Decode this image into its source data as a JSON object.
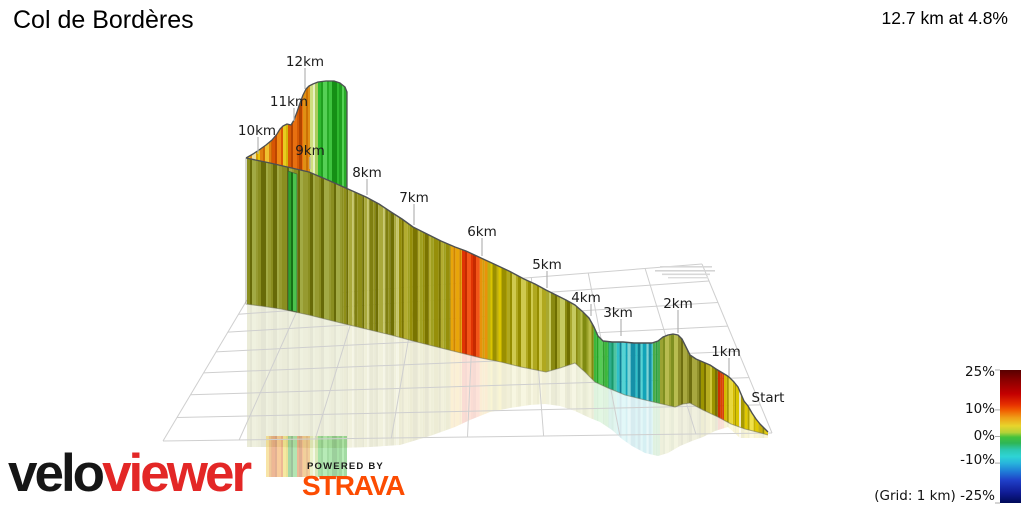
{
  "header": {
    "title": "Col de Bordères",
    "summary": "12.7 km at 4.8%"
  },
  "legend": {
    "ticks": [
      "25%",
      "10%",
      "0%",
      "-10%",
      "-25%"
    ],
    "grid_note": "(Grid: 1 km)",
    "bottom_line": "(Grid: 1 km) -25%"
  },
  "footer": {
    "brand_black": "velo",
    "brand_red": "viewer",
    "powered_by": "POWERED BY",
    "strava": "STRAVA"
  },
  "chart_data": {
    "type": "3d_elevation_profile",
    "title": "Col de Bordères",
    "distance_km": 12.7,
    "avg_grade_pct": 4.8,
    "grid_interval_km": 1,
    "markers": [
      {
        "km": 0,
        "label": "Start"
      },
      {
        "km": 1,
        "label": "1km"
      },
      {
        "km": 2,
        "label": "2km"
      },
      {
        "km": 3,
        "label": "3km"
      },
      {
        "km": 4,
        "label": "4km"
      },
      {
        "km": 5,
        "label": "5km"
      },
      {
        "km": 6,
        "label": "6km"
      },
      {
        "km": 7,
        "label": "7km"
      },
      {
        "km": 8,
        "label": "8km"
      },
      {
        "km": 9,
        "label": "9km"
      },
      {
        "km": 10,
        "label": "10km"
      },
      {
        "km": 11,
        "label": "11km"
      },
      {
        "km": 12,
        "label": "12km"
      }
    ],
    "legend": {
      "min_pct": -25,
      "max_pct": 25,
      "tick_values_pct": [
        25,
        10,
        0,
        -10,
        -25
      ],
      "gradient": [
        [
          0,
          "#580000"
        ],
        [
          0.08,
          "#8c0000"
        ],
        [
          0.18,
          "#c40000"
        ],
        [
          0.26,
          "#e63000"
        ],
        [
          0.3,
          "#f05a00"
        ],
        [
          0.36,
          "#efa018"
        ],
        [
          0.42,
          "#e8d42c"
        ],
        [
          0.47,
          "#b4d238"
        ],
        [
          0.505,
          "#44c23c"
        ],
        [
          0.55,
          "#2eb656"
        ],
        [
          0.6,
          "#2cc8b0"
        ],
        [
          0.65,
          "#2ed4d4"
        ],
        [
          0.7,
          "#28b4dc"
        ],
        [
          0.76,
          "#1f7fd8"
        ],
        [
          0.83,
          "#1f3fc8"
        ],
        [
          0.92,
          "#101c96"
        ],
        [
          1,
          "#000a58"
        ]
      ]
    },
    "segments_front": [
      {
        "from_km": 0,
        "to_km": 0.22,
        "approx_grade_pct": 4,
        "colors": [
          "#c9ad06",
          "#8f8a00",
          "#e3cb10",
          "#6f6f00"
        ]
      },
      {
        "from_km": 0.22,
        "to_km": 0.6,
        "approx_grade_pct": 8,
        "colors": [
          "#e0c800",
          "#b3a300",
          "#f0e14a",
          "#c9b400"
        ]
      },
      {
        "from_km": 0.6,
        "to_km": 0.82,
        "approx_grade_pct": 7,
        "colors": [
          "#d9c400",
          "#efe7bd",
          "#a89a00",
          "#e3d220"
        ]
      },
      {
        "from_km": 0.82,
        "to_km": 1.1,
        "approx_grade_pct": 7,
        "colors": [
          "#d4ba00",
          "#a89a00",
          "#e8d83a"
        ]
      },
      {
        "from_km": 1.1,
        "to_km": 1.22,
        "approx_grade_pct": 12,
        "colors": [
          "#cc2f00",
          "#dd4400"
        ]
      },
      {
        "from_km": 1.22,
        "to_km": 1.55,
        "approx_grade_pct": 6,
        "colors": [
          "#9c9400",
          "#786f00",
          "#b7ad20",
          "#d0c63a"
        ]
      },
      {
        "from_km": 1.55,
        "to_km": 2.0,
        "approx_grade_pct": 5,
        "colors": [
          "#8f8f2a",
          "#6e6e10",
          "#a8a83f"
        ]
      },
      {
        "from_km": 2.0,
        "to_km": 2.3,
        "approx_grade_pct": 2,
        "colors": [
          "#9aa332",
          "#7f8f20",
          "#b8bc50"
        ]
      },
      {
        "from_km": 2.3,
        "to_km": 2.42,
        "approx_grade_pct": 0,
        "colors": [
          "#49ab49",
          "#2f9f3f"
        ]
      },
      {
        "from_km": 2.42,
        "to_km": 3.05,
        "approx_grade_pct": -6,
        "colors": [
          "#2fc0c8",
          "#0e7f94",
          "#55d4d4",
          "#11a4b8",
          "#7fd4d4",
          "#1590a8"
        ]
      },
      {
        "from_km": 3.05,
        "to_km": 3.35,
        "approx_grade_pct": -3,
        "colors": [
          "#2fae8e",
          "#18986a",
          "#4fc4a0",
          "#0e7f94"
        ]
      },
      {
        "from_km": 3.35,
        "to_km": 3.9,
        "approx_grade_pct": 0,
        "colors": [
          "#3cb83c",
          "#25a325",
          "#55cc55",
          "#2f9f2f"
        ]
      },
      {
        "from_km": 3.9,
        "to_km": 4.3,
        "approx_grade_pct": 4,
        "colors": [
          "#9ba32a",
          "#b9bd4a",
          "#7f8a10"
        ]
      },
      {
        "from_km": 4.3,
        "to_km": 5.0,
        "approx_grade_pct": 5,
        "colors": [
          "#a8a82f",
          "#c6ca60",
          "#8a8a10",
          "#6f6f00"
        ]
      },
      {
        "from_km": 5.0,
        "to_km": 5.6,
        "approx_grade_pct": 5,
        "colors": [
          "#b0a81f",
          "#948c00",
          "#cfc94f"
        ]
      },
      {
        "from_km": 5.6,
        "to_km": 5.9,
        "approx_grade_pct": 6,
        "colors": [
          "#bfae10",
          "#d9c400",
          "#9a8f00"
        ]
      },
      {
        "from_km": 5.9,
        "to_km": 6.02,
        "approx_grade_pct": 8,
        "colors": [
          "#e8930a",
          "#cfa010"
        ]
      },
      {
        "from_km": 6.02,
        "to_km": 6.28,
        "approx_grade_pct": 12,
        "colors": [
          "#e03404",
          "#c62a00",
          "#f25618"
        ]
      },
      {
        "from_km": 6.28,
        "to_km": 6.45,
        "approx_grade_pct": 8,
        "colors": [
          "#e8a50a",
          "#d08500"
        ]
      },
      {
        "from_km": 6.45,
        "to_km": 7.3,
        "approx_grade_pct": 5,
        "colors": [
          "#968f0a",
          "#7a7400",
          "#b2ac2f",
          "#a0a020"
        ]
      },
      {
        "from_km": 7.3,
        "to_km": 8.4,
        "approx_grade_pct": 5,
        "colors": [
          "#8f8f18",
          "#6f6f04",
          "#a9a93a",
          "#c4c465",
          "#7f7f10"
        ]
      },
      {
        "from_km": 8.4,
        "to_km": 9.65,
        "approx_grade_pct": 6,
        "colors": [
          "#8a8e20",
          "#676a08",
          "#a2aa44",
          "#969a30"
        ]
      }
    ],
    "segments_back": [
      {
        "from_km": 9.65,
        "to_km": 10.0,
        "approx_grade_pct": 7,
        "colors": [
          "#e8c410",
          "#e08a10",
          "#efe0a0",
          "#d8a000"
        ]
      },
      {
        "from_km": 10.0,
        "to_km": 10.4,
        "approx_grade_pct": 9,
        "colors": [
          "#e08010",
          "#cc6604",
          "#efc030"
        ]
      },
      {
        "from_km": 10.4,
        "to_km": 10.8,
        "approx_grade_pct": 10,
        "colors": [
          "#d85504",
          "#bc4400",
          "#ef8814"
        ]
      },
      {
        "from_km": 10.8,
        "to_km": 11.0,
        "approx_grade_pct": 8,
        "colors": [
          "#e8cc20",
          "#d4b80a"
        ]
      },
      {
        "from_km": 11.0,
        "to_km": 11.6,
        "approx_grade_pct": 10,
        "colors": [
          "#d55a04",
          "#b34400",
          "#e87010"
        ]
      },
      {
        "from_km": 11.6,
        "to_km": 11.9,
        "approx_grade_pct": 7,
        "colors": [
          "#e09014",
          "#cc7004"
        ]
      },
      {
        "from_km": 11.9,
        "to_km": 12.1,
        "approx_grade_pct": 2,
        "colors": [
          "#cede7f",
          "#e8f0c0",
          "#a8cc5a"
        ]
      },
      {
        "from_km": 12.1,
        "to_km": 12.7,
        "approx_grade_pct": 0,
        "colors": [
          "#2fb82f",
          "#1f9f1f",
          "#55d055",
          "#27ab27",
          "#3fc43f",
          "#158f15"
        ]
      }
    ],
    "segments_endcap": [
      {
        "from_km": 12.6,
        "to_km": 12.7,
        "approx_grade_pct": 0,
        "colors": [
          "#2ca22c",
          "#176f17",
          "#4cc24c",
          "#239623"
        ]
      }
    ]
  }
}
